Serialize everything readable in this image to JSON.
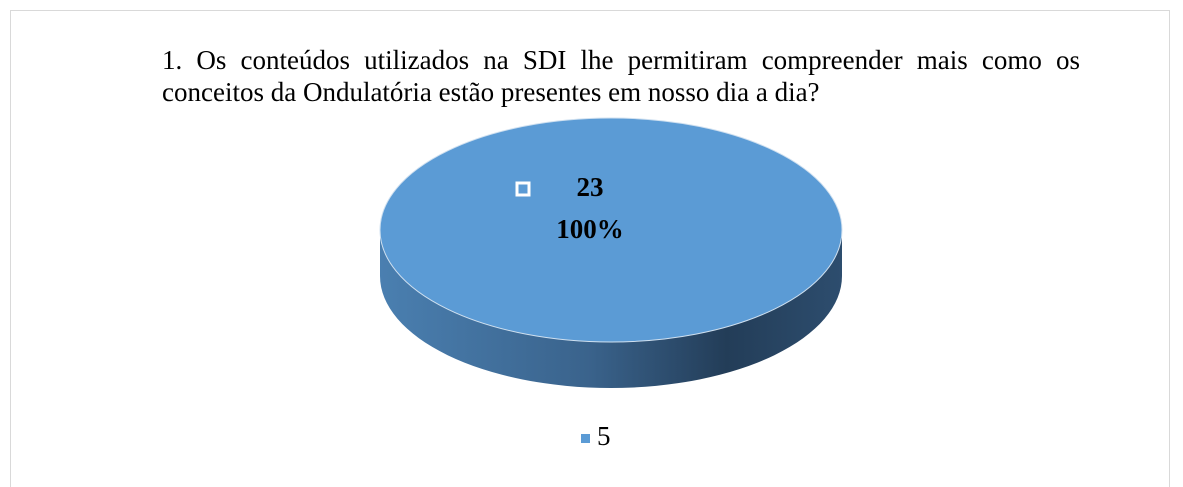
{
  "chart_data": {
    "type": "pie",
    "title": "1. Os conteúdos utilizados na SDI lhe permitiram compreender mais como os conceitos da Ondulatória estão presentes em nosso dia a dia?",
    "categories": [
      "5"
    ],
    "values": [
      23
    ],
    "percent_labels": [
      "100%"
    ],
    "colors": [
      "#5b9bd5"
    ],
    "legend": "bottom"
  }
}
